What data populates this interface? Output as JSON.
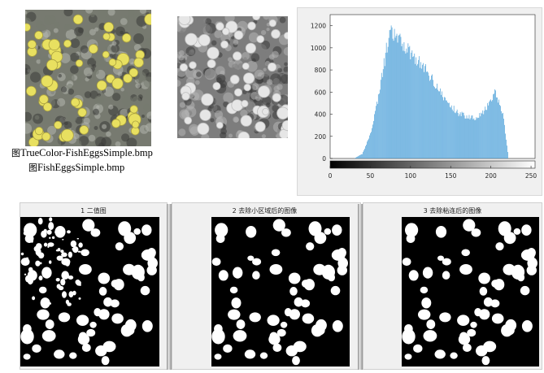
{
  "images": {
    "truecolor_caption": "TrueColor-FishEggsSimple.bmp",
    "gray_caption": "FishEggsSimple.bmp",
    "caption_icon": "image-file-icon",
    "caption_icon_glyph": "图"
  },
  "histogram": {
    "x_ticks": [
      "0",
      "50",
      "100",
      "150",
      "200",
      "250"
    ],
    "y_ticks": [
      "0",
      "200",
      "400",
      "600",
      "800",
      "1000",
      "1200"
    ],
    "bar_color": "#4a9fd8",
    "chart_data": {
      "type": "bar",
      "x": [
        30,
        40,
        50,
        60,
        70,
        75,
        80,
        90,
        100,
        110,
        120,
        130,
        140,
        150,
        160,
        170,
        180,
        190,
        200,
        205,
        210,
        215,
        220,
        222
      ],
      "values": [
        0,
        40,
        220,
        560,
        980,
        1130,
        1110,
        1040,
        960,
        880,
        790,
        690,
        560,
        470,
        410,
        380,
        370,
        410,
        510,
        590,
        520,
        400,
        120,
        0
      ],
      "xlim": [
        0,
        255
      ],
      "ylim": [
        0,
        1300
      ]
    }
  },
  "panels": [
    {
      "title": "1 二值图"
    },
    {
      "title": "2 去除小区域后的图像"
    },
    {
      "title": "3 去除粘连后的图像"
    }
  ],
  "colors": {
    "egg_yellow": "#e8e060",
    "background_gray": "#8a8a8a",
    "binary_black": "#000000",
    "binary_white": "#ffffff"
  }
}
